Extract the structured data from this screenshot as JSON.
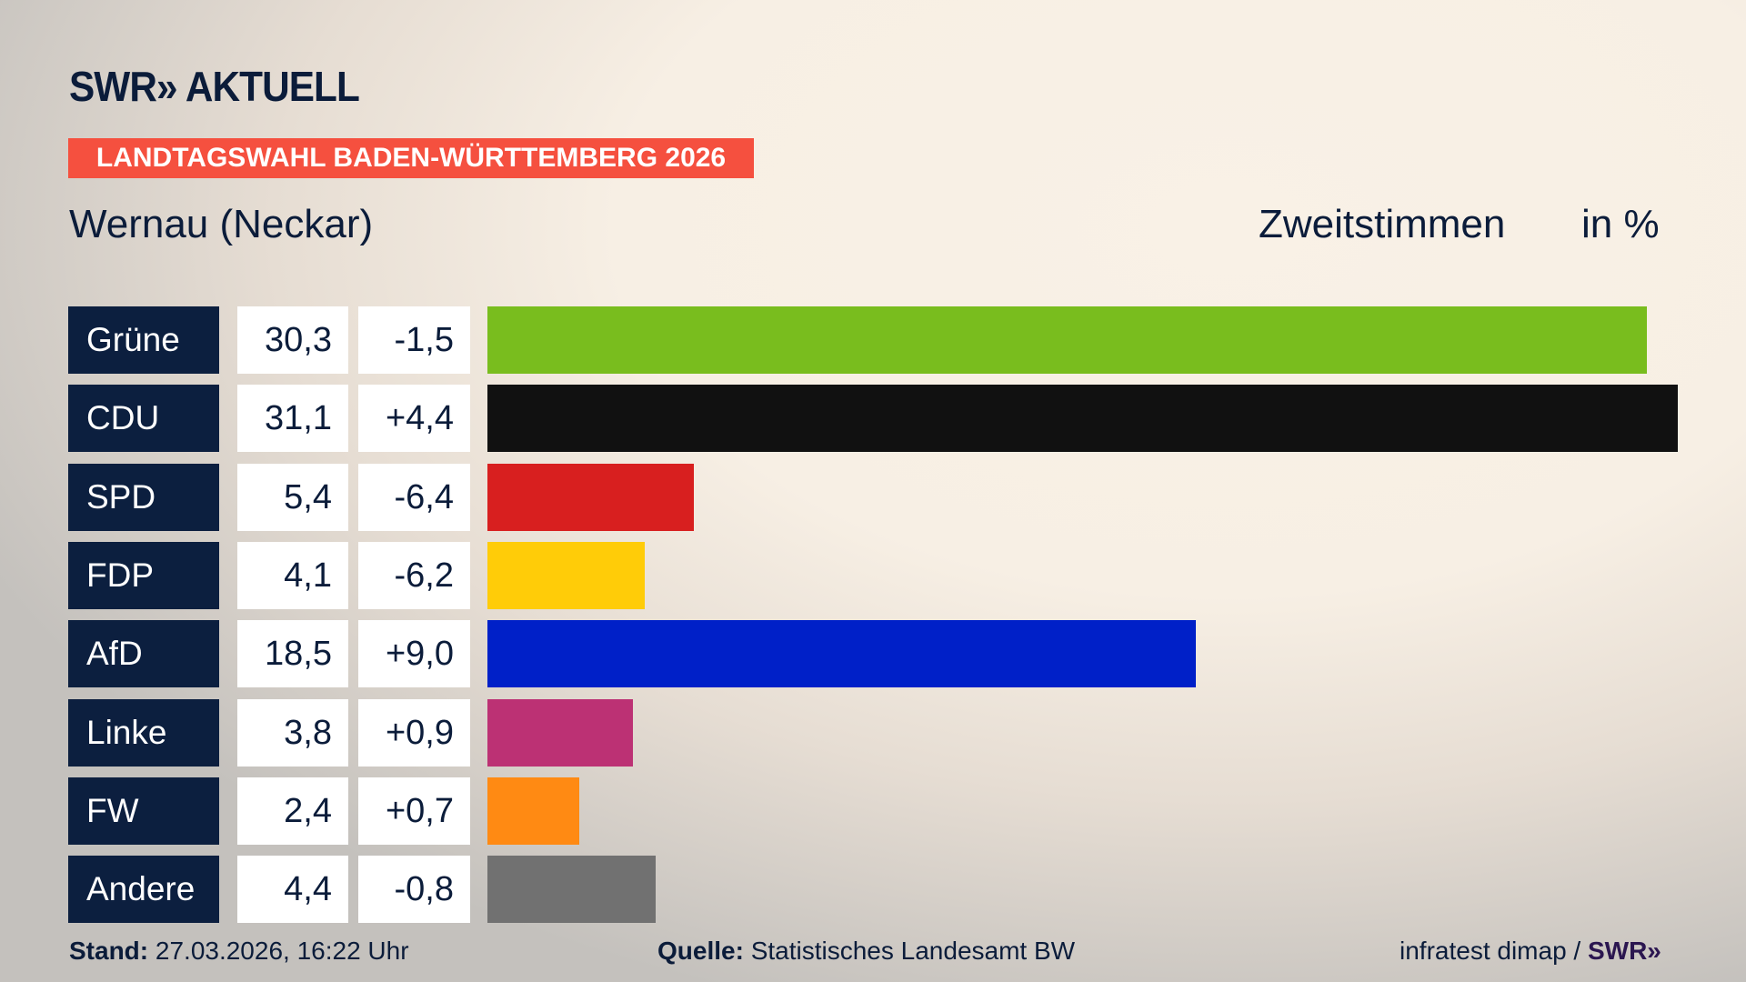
{
  "header": {
    "logo": "SWR» AKTUELL",
    "banner": "LANDTAGSWAHL BADEN-WÜRTTEMBERG 2026",
    "region": "Wernau (Neckar)",
    "vote_type": "Zweitstimmen",
    "unit": "in %"
  },
  "chart_data": {
    "type": "bar",
    "orientation": "horizontal",
    "categories": [
      "Grüne",
      "CDU",
      "SPD",
      "FDP",
      "AfD",
      "Linke",
      "FW",
      "Andere"
    ],
    "values": [
      30.3,
      31.1,
      5.4,
      4.1,
      18.5,
      3.8,
      2.4,
      4.4
    ],
    "values_text": [
      "30,3",
      "31,1",
      "5,4",
      "4,1",
      "18,5",
      "3,8",
      "2,4",
      "4,4"
    ],
    "diff_text": [
      "-1,5",
      "+4,4",
      "-6,4",
      "-6,2",
      "+9,0",
      "+0,9",
      "+0,7",
      "-0,8"
    ],
    "diffs": [
      -1.5,
      4.4,
      -6.4,
      -6.2,
      9.0,
      0.9,
      0.7,
      -0.8
    ],
    "colors": [
      "#79bd1e",
      "#111111",
      "#d81f1f",
      "#ffcc08",
      "#0020c8",
      "#bc3174",
      "#ff8a13",
      "#717171"
    ],
    "xlim": [
      0,
      31.1
    ]
  },
  "footer": {
    "stand_label": "Stand:",
    "stand_value": "27.03.2026, 16:22 Uhr",
    "source_label": "Quelle:",
    "source_value": "Statistisches Landesamt BW",
    "credit": "infratest dimap /",
    "credit_logo": "SWR»"
  }
}
